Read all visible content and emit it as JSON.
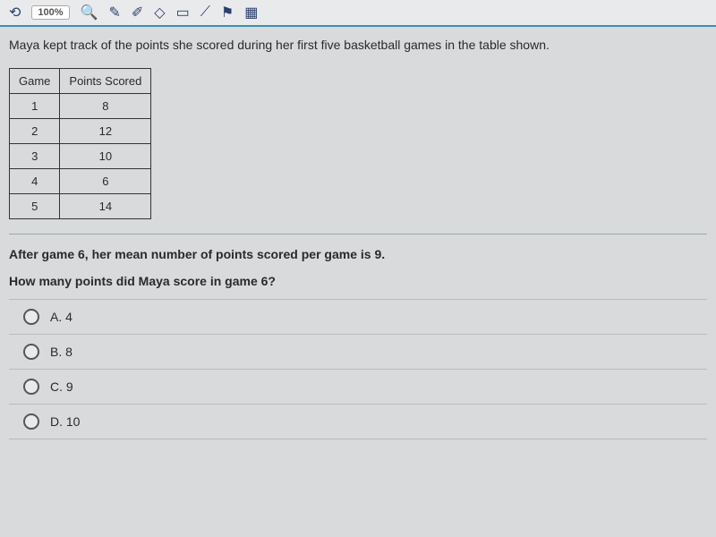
{
  "toolbar": {
    "zoom": "100%"
  },
  "intro": "Maya kept track of the points she scored during her first five basketball games in the table shown.",
  "table": {
    "headers": [
      "Game",
      "Points Scored"
    ],
    "rows": [
      [
        "1",
        "8"
      ],
      [
        "2",
        "12"
      ],
      [
        "3",
        "10"
      ],
      [
        "4",
        "6"
      ],
      [
        "5",
        "14"
      ]
    ]
  },
  "after": "After game 6, her mean number of points scored per game is 9.",
  "question": "How many points did Maya score in game 6?",
  "options": [
    {
      "label": "A.  4"
    },
    {
      "label": "B.  8"
    },
    {
      "label": "C.  9"
    },
    {
      "label": "D.  10"
    }
  ]
}
